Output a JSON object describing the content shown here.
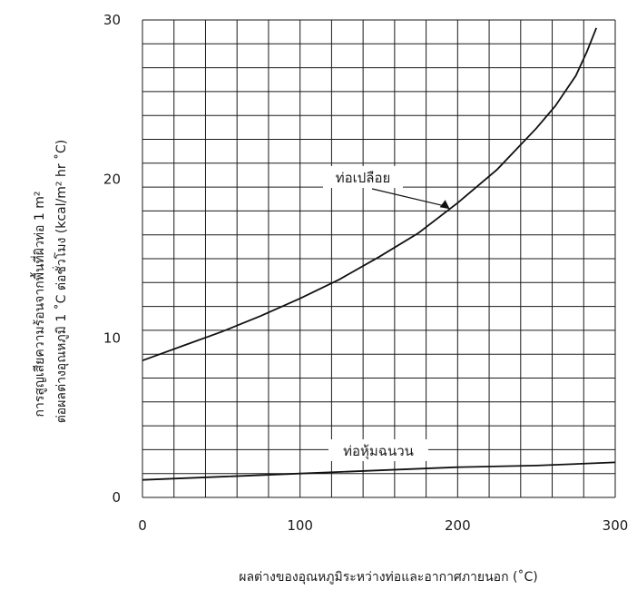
{
  "chart_data": {
    "type": "line",
    "xlabel": "ผลต่างของอุณหภูมิระหว่างท่อและอากาศภายนอก (˚C)",
    "ylabel_line1": "การสูญเสียความร้อนจากพื้นที่ผิวท่อ 1 m²",
    "ylabel_line2": "ต่อผลต่างอุณหภูมิ 1 ˚C ต่อชั่วโมง (kcal/m² hr ˚C)",
    "xlim": [
      0,
      300
    ],
    "ylim": [
      0,
      30
    ],
    "x_ticks": [
      "0",
      "100",
      "200",
      "300"
    ],
    "y_ticks": [
      "0",
      "10",
      "20",
      "30"
    ],
    "grid": true,
    "series": [
      {
        "name": "ท่อเปลือย",
        "x": [
          0,
          25,
          50,
          75,
          100,
          125,
          150,
          175,
          200,
          225,
          250,
          262,
          275,
          282,
          288
        ],
        "y": [
          8.6,
          9.5,
          10.4,
          11.4,
          12.5,
          13.7,
          15.1,
          16.6,
          18.5,
          20.6,
          23.2,
          24.6,
          26.5,
          28.0,
          29.5
        ]
      },
      {
        "name": "ท่อหุ้มฉนวน",
        "x": [
          0,
          50,
          100,
          150,
          200,
          250,
          300
        ],
        "y": [
          1.1,
          1.3,
          1.5,
          1.7,
          1.9,
          2.0,
          2.2
        ]
      }
    ],
    "annotations": [
      {
        "text": "ท่อเปลือย",
        "series": 0,
        "arrow_to_x": 195
      },
      {
        "text": "ท่อหุ้มฉนวน",
        "series": 1,
        "arrow_to_x": null
      }
    ]
  }
}
